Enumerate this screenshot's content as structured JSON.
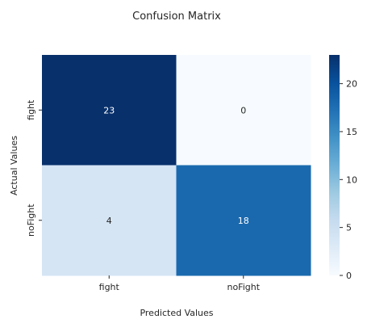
{
  "chart_data": {
    "type": "heatmap",
    "title": "Confusion Matrix",
    "xlabel": "Predicted Values",
    "ylabel": "Actual Values",
    "x_categories": [
      "fight",
      "noFight"
    ],
    "y_categories": [
      "fight",
      "noFight"
    ],
    "values": [
      [
        23,
        0
      ],
      [
        4,
        18
      ]
    ],
    "colorbar": {
      "min": 0,
      "max": 23,
      "ticks": [
        0,
        5,
        10,
        15,
        20
      ],
      "colormap": "Blues"
    },
    "annotations": true,
    "colors": {
      "low": "#f7fbff",
      "high": "#08306b",
      "text_dark_cell": "#ffffff",
      "text_light_cell": "#262626"
    }
  }
}
